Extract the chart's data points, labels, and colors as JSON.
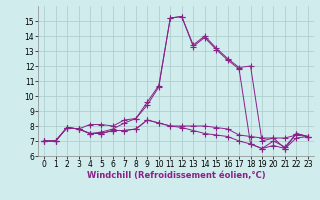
{
  "xlabel": "Windchill (Refroidissement éolien,°C)",
  "x": [
    0,
    1,
    2,
    3,
    4,
    5,
    6,
    7,
    8,
    9,
    10,
    11,
    12,
    13,
    14,
    15,
    16,
    17,
    18,
    19,
    20,
    21,
    22,
    23
  ],
  "series": [
    [
      7.0,
      7.0,
      7.9,
      7.8,
      7.5,
      7.6,
      7.8,
      8.2,
      8.5,
      9.6,
      10.7,
      15.2,
      15.3,
      13.4,
      14.0,
      13.2,
      12.5,
      11.9,
      12.0,
      7.0,
      7.2,
      6.5,
      7.5,
      7.3
    ],
    [
      7.0,
      7.0,
      7.9,
      7.8,
      8.1,
      8.1,
      8.0,
      8.4,
      8.5,
      9.4,
      10.6,
      15.2,
      15.3,
      13.3,
      13.9,
      13.1,
      12.4,
      11.8,
      6.8,
      6.5,
      7.0,
      6.6,
      7.5,
      7.3
    ],
    [
      7.0,
      7.0,
      7.9,
      7.8,
      7.5,
      7.5,
      7.7,
      7.7,
      7.8,
      8.4,
      8.2,
      8.0,
      8.0,
      8.0,
      8.0,
      7.9,
      7.8,
      7.4,
      7.3,
      7.2,
      7.2,
      7.2,
      7.4,
      7.3
    ],
    [
      7.0,
      7.0,
      7.9,
      7.8,
      7.5,
      7.5,
      7.7,
      7.7,
      7.8,
      8.4,
      8.2,
      8.0,
      7.9,
      7.7,
      7.5,
      7.4,
      7.3,
      7.0,
      6.8,
      6.5,
      6.7,
      6.5,
      7.2,
      7.3
    ]
  ],
  "line_color": "#882288",
  "marker": "+",
  "marker_size": 4,
  "bg_color": "#d0ecec",
  "grid_color": "#aacccc",
  "ylim": [
    6,
    16
  ],
  "yticks": [
    6,
    7,
    8,
    9,
    10,
    11,
    12,
    13,
    14,
    15
  ],
  "xlim": [
    -0.5,
    23.5
  ],
  "xticks": [
    0,
    1,
    2,
    3,
    4,
    5,
    6,
    7,
    8,
    9,
    10,
    11,
    12,
    13,
    14,
    15,
    16,
    17,
    18,
    19,
    20,
    21,
    22,
    23
  ],
  "tick_fontsize": 5.5,
  "label_fontsize": 6.0
}
